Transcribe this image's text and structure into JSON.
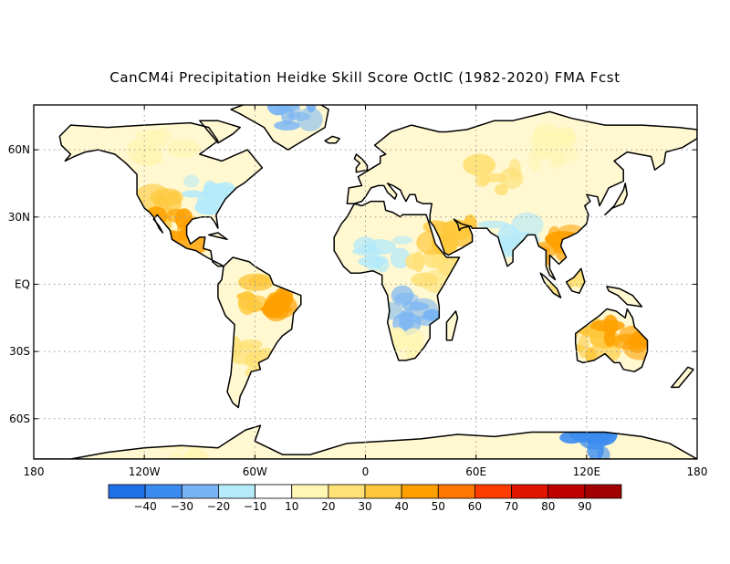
{
  "title": "CanCM4i Precipitation Heidke Skill Score OctIC (1982-2020) FMA Fcst",
  "map": {
    "projection": "latitude-longitude",
    "lon_range": [
      -180,
      180
    ],
    "lat_range": [
      -78,
      80
    ],
    "grid": "dotted",
    "lon_ticks": [
      {
        "lon": -180,
        "label": "180"
      },
      {
        "lon": -120,
        "label": "120W"
      },
      {
        "lon": -60,
        "label": "60W"
      },
      {
        "lon": 0,
        "label": "0"
      },
      {
        "lon": 60,
        "label": "60E"
      },
      {
        "lon": 120,
        "label": "120E"
      },
      {
        "lon": 180,
        "label": "180"
      }
    ],
    "lat_ticks": [
      {
        "lat": 60,
        "label": "60N"
      },
      {
        "lat": 30,
        "label": "30N"
      },
      {
        "lat": 0,
        "label": "EQ"
      },
      {
        "lat": -30,
        "label": "30S"
      },
      {
        "lat": -60,
        "label": "60S"
      }
    ]
  },
  "colorbar": {
    "colors": [
      "#1e6fe8",
      "#3c8cf0",
      "#78b4f5",
      "#b4eafa",
      "#ffffff",
      "#fff5b4",
      "#ffe178",
      "#ffc83c",
      "#ffa000",
      "#ff7800",
      "#ff3c00",
      "#e11400",
      "#c00000",
      "#a00000"
    ],
    "labels": [
      "−40",
      "−30",
      "−20",
      "−10",
      "10",
      "20",
      "30",
      "40",
      "50",
      "60",
      "70",
      "80",
      "90"
    ]
  },
  "skill_regions": [
    {
      "name": "western-us",
      "lon": -108,
      "lat": 33,
      "level": "pos30"
    },
    {
      "name": "mexico",
      "lon": -104,
      "lat": 24,
      "level": "pos40"
    },
    {
      "name": "canada",
      "lon": -110,
      "lat": 60,
      "level": "pos10"
    },
    {
      "name": "eastern-us",
      "lon": -85,
      "lat": 40,
      "level": "neg10"
    },
    {
      "name": "amazon",
      "lon": -58,
      "lat": -5,
      "level": "pos30"
    },
    {
      "name": "ne-brazil",
      "lon": -40,
      "lat": -8,
      "level": "pos40"
    },
    {
      "name": "southern-s-america",
      "lon": -63,
      "lat": -33,
      "level": "pos20"
    },
    {
      "name": "greenland-north",
      "lon": -38,
      "lat": 77,
      "level": "neg20"
    },
    {
      "name": "sahel",
      "lon": 10,
      "lat": 14,
      "level": "neg10"
    },
    {
      "name": "central-africa",
      "lon": 25,
      "lat": -12,
      "level": "neg20"
    },
    {
      "name": "east-africa",
      "lon": 38,
      "lat": 5,
      "level": "pos20"
    },
    {
      "name": "southern-africa",
      "lon": 20,
      "lat": -28,
      "level": "pos10"
    },
    {
      "name": "arabia",
      "lon": 46,
      "lat": 20,
      "level": "pos30"
    },
    {
      "name": "central-asia",
      "lon": 70,
      "lat": 48,
      "level": "pos20"
    },
    {
      "name": "siberia",
      "lon": 100,
      "lat": 62,
      "level": "pos10"
    },
    {
      "name": "india",
      "lon": 78,
      "lat": 20,
      "level": "neg10"
    },
    {
      "name": "se-asia",
      "lon": 102,
      "lat": 17,
      "level": "pos40"
    },
    {
      "name": "indonesia",
      "lon": 112,
      "lat": -3,
      "level": "pos20"
    },
    {
      "name": "australia-west",
      "lon": 122,
      "lat": -25,
      "level": "pos30"
    },
    {
      "name": "australia-east",
      "lon": 142,
      "lat": -25,
      "level": "pos40"
    },
    {
      "name": "antarctica-east",
      "lon": 120,
      "lat": -72,
      "level": "neg30"
    },
    {
      "name": "antarctica-west",
      "lon": -100,
      "lat": -76,
      "level": "pos10"
    }
  ]
}
